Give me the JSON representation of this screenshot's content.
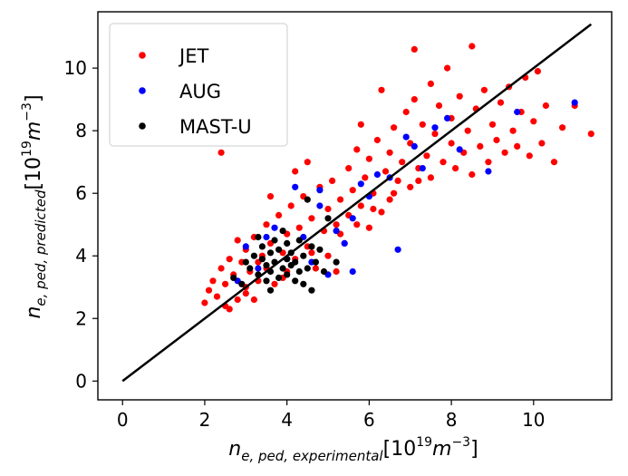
{
  "chart_data": {
    "type": "scatter",
    "xlabel": {
      "base": "n",
      "sub": "e, ped, experimental",
      "unit_open": "[10",
      "unit_exp": "19",
      "unit_m": "m",
      "unit_mexp": "−3",
      "unit_close": "]"
    },
    "ylabel": {
      "base": "n",
      "sub": "e, ped, predicted",
      "unit_open": "[10",
      "unit_exp": "19",
      "unit_m": "m",
      "unit_mexp": "−3",
      "unit_close": "]"
    },
    "xlim": [
      -0.6,
      11.9
    ],
    "ylim": [
      -0.6,
      11.8
    ],
    "xticks": [
      0,
      2,
      4,
      6,
      8,
      10
    ],
    "yticks": [
      0,
      2,
      4,
      6,
      8,
      10
    ],
    "grid": false,
    "legend_position": "top-left",
    "identity_line": {
      "from": [
        0,
        0
      ],
      "to": [
        11.4,
        11.4
      ],
      "color": "#000000"
    },
    "series": [
      {
        "name": "JET",
        "color": "#ff0000",
        "points": [
          [
            2.0,
            2.5
          ],
          [
            2.1,
            2.9
          ],
          [
            2.2,
            3.2
          ],
          [
            2.3,
            2.7
          ],
          [
            2.4,
            3.6
          ],
          [
            2.5,
            2.4
          ],
          [
            2.5,
            3.1
          ],
          [
            2.6,
            3.9
          ],
          [
            2.7,
            3.4
          ],
          [
            2.8,
            2.6
          ],
          [
            2.9,
            3.8
          ],
          [
            3.0,
            4.2
          ],
          [
            3.0,
            3.0
          ],
          [
            3.1,
            3.5
          ],
          [
            3.2,
            4.6
          ],
          [
            3.3,
            3.2
          ],
          [
            3.4,
            4.0
          ],
          [
            3.5,
            5.0
          ],
          [
            3.5,
            3.6
          ],
          [
            3.6,
            4.4
          ],
          [
            3.7,
            3.1
          ],
          [
            3.8,
            5.3
          ],
          [
            3.9,
            4.1
          ],
          [
            4.0,
            4.7
          ],
          [
            4.0,
            3.5
          ],
          [
            4.1,
            5.6
          ],
          [
            4.2,
            3.9
          ],
          [
            4.3,
            4.9
          ],
          [
            4.4,
            5.9
          ],
          [
            4.5,
            4.3
          ],
          [
            4.6,
            5.2
          ],
          [
            4.7,
            3.6
          ],
          [
            4.8,
            6.2
          ],
          [
            4.9,
            4.8
          ],
          [
            5.0,
            5.5
          ],
          [
            5.0,
            4.0
          ],
          [
            5.1,
            6.4
          ],
          [
            5.2,
            5.0
          ],
          [
            5.3,
            5.8
          ],
          [
            5.4,
            4.4
          ],
          [
            5.5,
            6.8
          ],
          [
            5.5,
            5.3
          ],
          [
            5.6,
            6.1
          ],
          [
            5.7,
            7.4
          ],
          [
            5.8,
            5.6
          ],
          [
            5.9,
            6.5
          ],
          [
            6.0,
            4.9
          ],
          [
            6.0,
            7.1
          ],
          [
            6.1,
            6.0
          ],
          [
            6.2,
            7.7
          ],
          [
            6.3,
            5.4
          ],
          [
            6.4,
            6.7
          ],
          [
            6.5,
            7.3
          ],
          [
            6.5,
            5.8
          ],
          [
            6.6,
            8.1
          ],
          [
            6.7,
            6.4
          ],
          [
            6.8,
            7.0
          ],
          [
            6.9,
            8.6
          ],
          [
            7.0,
            6.2
          ],
          [
            7.0,
            7.6
          ],
          [
            7.1,
            9.0
          ],
          [
            7.2,
            6.8
          ],
          [
            7.3,
            8.2
          ],
          [
            7.4,
            7.2
          ],
          [
            7.5,
            9.5
          ],
          [
            7.5,
            6.5
          ],
          [
            7.6,
            7.9
          ],
          [
            7.7,
            8.8
          ],
          [
            7.8,
            7.0
          ],
          [
            7.9,
            10.0
          ],
          [
            8.0,
            7.6
          ],
          [
            8.0,
            8.4
          ],
          [
            8.1,
            6.8
          ],
          [
            8.2,
            9.1
          ],
          [
            8.3,
            7.3
          ],
          [
            8.4,
            8.0
          ],
          [
            8.5,
            10.7
          ],
          [
            8.5,
            6.6
          ],
          [
            8.6,
            8.7
          ],
          [
            8.7,
            7.5
          ],
          [
            8.8,
            9.3
          ],
          [
            8.9,
            7.0
          ],
          [
            9.0,
            8.2
          ],
          [
            9.1,
            7.7
          ],
          [
            9.2,
            8.9
          ],
          [
            9.3,
            7.3
          ],
          [
            9.4,
            9.4
          ],
          [
            9.5,
            8.0
          ],
          [
            9.6,
            7.5
          ],
          [
            9.7,
            8.6
          ],
          [
            9.8,
            9.7
          ],
          [
            9.9,
            7.2
          ],
          [
            10.0,
            8.3
          ],
          [
            10.1,
            9.9
          ],
          [
            10.2,
            7.6
          ],
          [
            10.3,
            8.8
          ],
          [
            10.5,
            7.0
          ],
          [
            10.7,
            8.1
          ],
          [
            11.0,
            8.8
          ],
          [
            11.4,
            7.9
          ],
          [
            2.4,
            7.3
          ],
          [
            4.5,
            7.0
          ],
          [
            5.2,
            3.5
          ],
          [
            3.2,
            2.6
          ],
          [
            2.8,
            4.5
          ],
          [
            6.3,
            9.3
          ],
          [
            7.1,
            10.6
          ],
          [
            4.2,
            6.7
          ],
          [
            5.8,
            8.2
          ],
          [
            3.6,
            5.9
          ],
          [
            2.6,
            2.3
          ],
          [
            3.0,
            2.8
          ],
          [
            3.3,
            3.8
          ],
          [
            3.9,
            3.3
          ],
          [
            4.6,
            4.1
          ],
          [
            5.3,
            4.7
          ],
          [
            5.7,
            5.0
          ],
          [
            6.1,
            5.5
          ],
          [
            6.6,
            6.0
          ],
          [
            7.2,
            6.4
          ]
        ]
      },
      {
        "name": "AUG",
        "color": "#0000ff",
        "points": [
          [
            2.8,
            3.2
          ],
          [
            3.0,
            4.3
          ],
          [
            3.3,
            3.6
          ],
          [
            3.5,
            4.6
          ],
          [
            3.7,
            4.9
          ],
          [
            4.0,
            3.9
          ],
          [
            4.2,
            6.2
          ],
          [
            4.4,
            4.6
          ],
          [
            4.6,
            3.8
          ],
          [
            4.8,
            5.6
          ],
          [
            5.0,
            3.4
          ],
          [
            5.2,
            4.8
          ],
          [
            5.4,
            4.4
          ],
          [
            5.6,
            5.2
          ],
          [
            5.8,
            6.3
          ],
          [
            6.0,
            5.9
          ],
          [
            6.2,
            6.6
          ],
          [
            6.5,
            6.5
          ],
          [
            6.7,
            4.2
          ],
          [
            6.9,
            7.8
          ],
          [
            7.1,
            7.5
          ],
          [
            7.3,
            6.8
          ],
          [
            7.6,
            8.1
          ],
          [
            7.9,
            8.4
          ],
          [
            8.2,
            7.4
          ],
          [
            8.9,
            6.7
          ],
          [
            9.6,
            8.6
          ],
          [
            11.0,
            8.9
          ],
          [
            4.8,
            6.1
          ],
          [
            5.6,
            3.5
          ]
        ]
      },
      {
        "name": "MAST-U",
        "color": "#000000",
        "points": [
          [
            2.9,
            3.1
          ],
          [
            3.1,
            3.6
          ],
          [
            3.2,
            4.0
          ],
          [
            3.3,
            3.4
          ],
          [
            3.4,
            3.9
          ],
          [
            3.4,
            4.3
          ],
          [
            3.5,
            3.2
          ],
          [
            3.5,
            3.7
          ],
          [
            3.6,
            4.1
          ],
          [
            3.6,
            3.5
          ],
          [
            3.7,
            4.5
          ],
          [
            3.7,
            3.8
          ],
          [
            3.8,
            3.3
          ],
          [
            3.8,
            4.2
          ],
          [
            3.9,
            3.6
          ],
          [
            3.9,
            4.8
          ],
          [
            4.0,
            3.9
          ],
          [
            4.0,
            3.4
          ],
          [
            4.0,
            4.4
          ],
          [
            4.1,
            3.7
          ],
          [
            4.1,
            4.1
          ],
          [
            4.2,
            3.2
          ],
          [
            4.2,
            3.8
          ],
          [
            4.3,
            4.5
          ],
          [
            4.3,
            3.5
          ],
          [
            4.4,
            4.0
          ],
          [
            4.4,
            3.1
          ],
          [
            4.5,
            3.6
          ],
          [
            4.6,
            4.3
          ],
          [
            4.6,
            2.9
          ],
          [
            4.7,
            3.8
          ],
          [
            4.8,
            4.2
          ],
          [
            5.0,
            5.2
          ],
          [
            5.2,
            3.8
          ],
          [
            3.3,
            4.6
          ],
          [
            3.6,
            2.9
          ],
          [
            3.0,
            3.8
          ],
          [
            4.5,
            5.8
          ],
          [
            2.7,
            3.3
          ],
          [
            4.9,
            3.5
          ]
        ]
      }
    ]
  }
}
